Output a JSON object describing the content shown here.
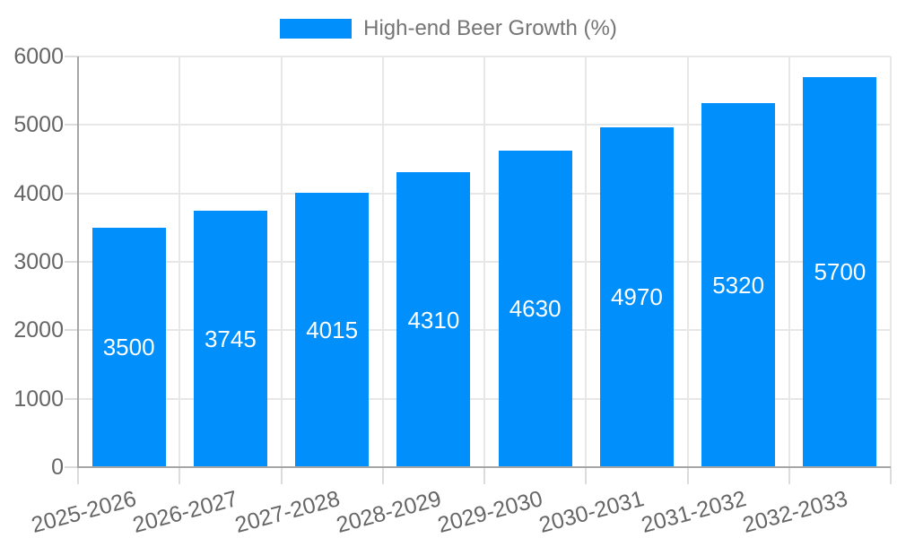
{
  "legend": {
    "label": "High-end Beer Growth (%)",
    "swatch_color": "#008FFB"
  },
  "chart_data": {
    "type": "bar",
    "title": "",
    "categories": [
      "2025-2026",
      "2026-2027",
      "2027-2028",
      "2028-2029",
      "2029-2030",
      "2030-2031",
      "2031-2032",
      "2032-2033"
    ],
    "series": [
      {
        "name": "High-end Beer Growth (%)",
        "color": "#008FFB",
        "values": [
          3500,
          3745,
          4015,
          4310,
          4630,
          4970,
          5320,
          5700
        ]
      }
    ],
    "xlabel": "",
    "ylabel": "",
    "ylim": [
      0,
      6000
    ],
    "y_ticks": [
      0,
      1000,
      2000,
      3000,
      4000,
      5000,
      6000
    ],
    "grid": true,
    "vertical_band_gridlines": true,
    "legend_position": "top",
    "x_label_rotation_deg": -15,
    "data_labels": {
      "show": true,
      "position": "center",
      "color": "#FFFFFF"
    },
    "colors": {
      "bar": "#008FFB",
      "axis_line": "#A6A6A6",
      "gridline": "#E7E7E7",
      "tick": "#DCDCDC",
      "axis_label": "#666666",
      "data_label": "#FFFFFF",
      "legend_text": "#757575",
      "background": "#FFFFFF"
    }
  }
}
